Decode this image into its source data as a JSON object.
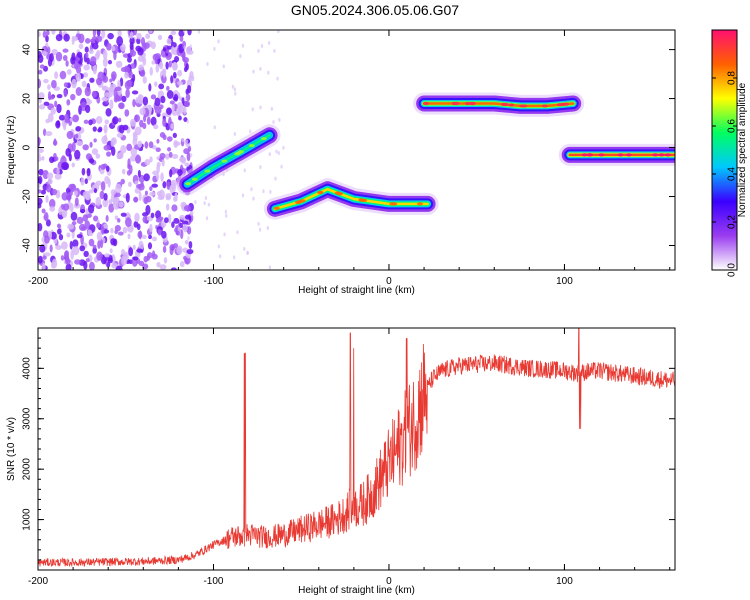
{
  "title": "GN05.2024.306.05.06.G07",
  "colors": {
    "snr_line": "#e83a32",
    "cbar": [
      "#ffffff",
      "#9a3cf0",
      "#3a00ff",
      "#00c8ff",
      "#00ff60",
      "#ffff00",
      "#ff6000",
      "#ff1070"
    ]
  },
  "chart_data": [
    {
      "type": "heatmap",
      "title": "GN05.2024.306.05.06.G07",
      "xlabel": "Height of straight line (km)",
      "ylabel": "Frequency (Hz)",
      "xlim": [
        -200,
        163
      ],
      "ylim": [
        -50,
        48
      ],
      "xticks": [
        -200,
        -100,
        0,
        100
      ],
      "yticks": [
        -40,
        -20,
        0,
        20,
        40
      ],
      "colorbar": {
        "label": "Normalized spectral amplitude",
        "range": [
          0,
          1
        ],
        "ticks": [
          "0.0",
          "0.2",
          "0.4",
          "0.6",
          "0.8"
        ]
      },
      "features": [
        {
          "region": "noise",
          "x_range": [
            -200,
            -118
          ],
          "freq_range": [
            -50,
            48
          ],
          "amplitude": 0.25
        },
        {
          "region": "track",
          "x": [
            -115,
            -100,
            -85,
            -68
          ],
          "freq": [
            -15,
            -8,
            -2,
            5
          ],
          "amplitude": 0.55
        },
        {
          "region": "track",
          "x": [
            -65,
            -50,
            -35,
            -20,
            0,
            22
          ],
          "freq": [
            -25,
            -22,
            -17,
            -21,
            -23,
            -23
          ],
          "amplitude": 0.75
        },
        {
          "region": "track",
          "x": [
            20,
            40,
            60,
            75,
            90,
            105
          ],
          "freq": [
            18,
            18,
            18,
            17,
            17,
            18
          ],
          "amplitude": 0.85
        },
        {
          "region": "track",
          "x": [
            103,
            120,
            140,
            163
          ],
          "freq": [
            -3,
            -3,
            -3,
            -3
          ],
          "amplitude": 0.9
        }
      ]
    },
    {
      "type": "line",
      "xlabel": "Height of straight line (km)",
      "ylabel": "SNR (10 * v/v)",
      "xlim": [
        -200,
        163
      ],
      "ylim": [
        0,
        4800
      ],
      "xticks": [
        -200,
        -100,
        0,
        100
      ],
      "yticks": [
        1000,
        2000,
        3000,
        4000
      ],
      "series": [
        {
          "x": [
            -200,
            -180,
            -160,
            -140,
            -120,
            -110,
            -100,
            -90,
            -80,
            -70,
            -60,
            -50,
            -40,
            -30,
            -22,
            -15,
            -10,
            -5,
            0,
            5,
            10,
            15,
            20,
            25,
            30,
            40,
            50,
            60,
            70,
            80,
            90,
            100,
            108,
            115,
            120,
            130,
            140,
            150,
            163
          ],
          "values": [
            150,
            150,
            160,
            170,
            200,
            300,
            500,
            650,
            700,
            650,
            700,
            800,
            900,
            1000,
            1200,
            1300,
            1500,
            1800,
            2100,
            2400,
            2700,
            3000,
            3500,
            3800,
            3950,
            4050,
            4080,
            4100,
            4050,
            4000,
            3980,
            3950,
            3900,
            3950,
            3950,
            3900,
            3850,
            3800,
            3750
          ]
        }
      ]
    }
  ]
}
